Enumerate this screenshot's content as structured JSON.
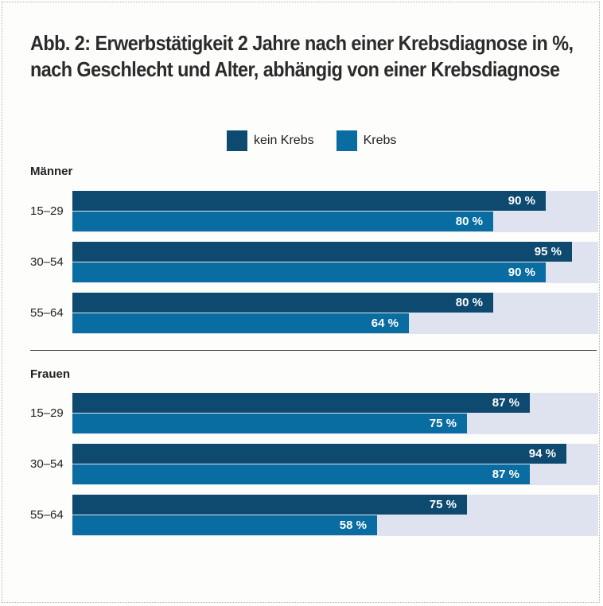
{
  "title_lines": [
    "Abb. 2: Erwerbstätigkeit 2 Jahre nach einer Krebsdiagnose in %,",
    "nach Geschlecht und Alter, abhängig von einer Krebsdiagnose"
  ],
  "legend": [
    {
      "label": "kein Krebs",
      "color": "#0e4a70"
    },
    {
      "label": "Krebs",
      "color": "#0a6da2"
    }
  ],
  "colors": {
    "kein_krebs": "#0e4a70",
    "krebs": "#0a6da2",
    "track": "#dfe3ef"
  },
  "chart_data": {
    "type": "bar",
    "orientation": "horizontal",
    "title": "Abb. 2: Erwerbstätigkeit 2 Jahre nach einer Krebsdiagnose in %, nach Geschlecht und Alter, abhängig von einer Krebsdiagnose",
    "xlim": [
      0,
      100
    ],
    "unit": "%",
    "groups": [
      {
        "name": "Männer",
        "categories": [
          "15–29",
          "30–54",
          "55–64"
        ],
        "series": [
          {
            "name": "kein Krebs",
            "values": [
              90,
              95,
              80
            ],
            "labels": [
              "90 %",
              "95 %",
              "80 %"
            ]
          },
          {
            "name": "Krebs",
            "values": [
              80,
              90,
              64
            ],
            "labels": [
              "80 %",
              "90 %",
              "64 %"
            ]
          }
        ]
      },
      {
        "name": "Frauen",
        "categories": [
          "15–29",
          "30–54",
          "55–64"
        ],
        "series": [
          {
            "name": "kein Krebs",
            "values": [
              87,
              94,
              75
            ],
            "labels": [
              "87 %",
              "94 %",
              "75 %"
            ]
          },
          {
            "name": "Krebs",
            "values": [
              75,
              87,
              58
            ],
            "labels": [
              "75 %",
              "87 %",
              "58 %"
            ]
          }
        ]
      }
    ]
  }
}
